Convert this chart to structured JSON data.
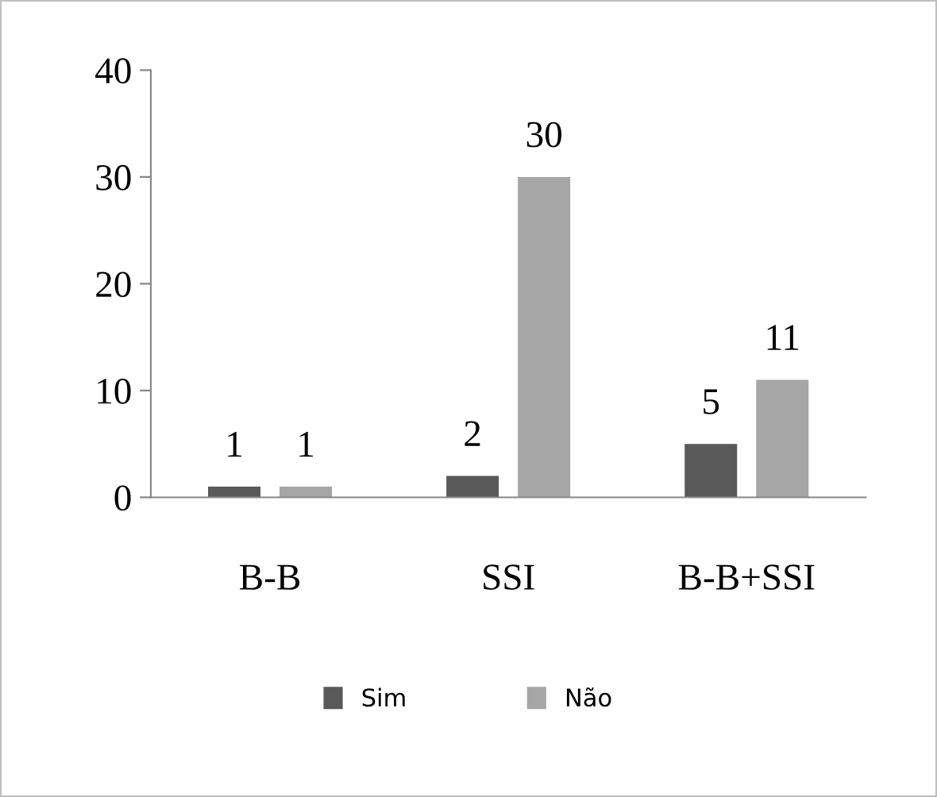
{
  "chart_data": {
    "type": "bar",
    "categories": [
      "B-B",
      "SSI",
      "B-B+SSI"
    ],
    "series": [
      {
        "name": "Sim",
        "color": "#595959",
        "values": [
          1,
          2,
          5
        ]
      },
      {
        "name": "Não",
        "color": "#a6a6a6",
        "values": [
          1,
          30,
          11
        ]
      }
    ],
    "ylim": [
      0,
      40
    ],
    "yticks": [
      0,
      10,
      20,
      30,
      40
    ],
    "data_labels": true,
    "legend": "bottom",
    "grid": false
  }
}
